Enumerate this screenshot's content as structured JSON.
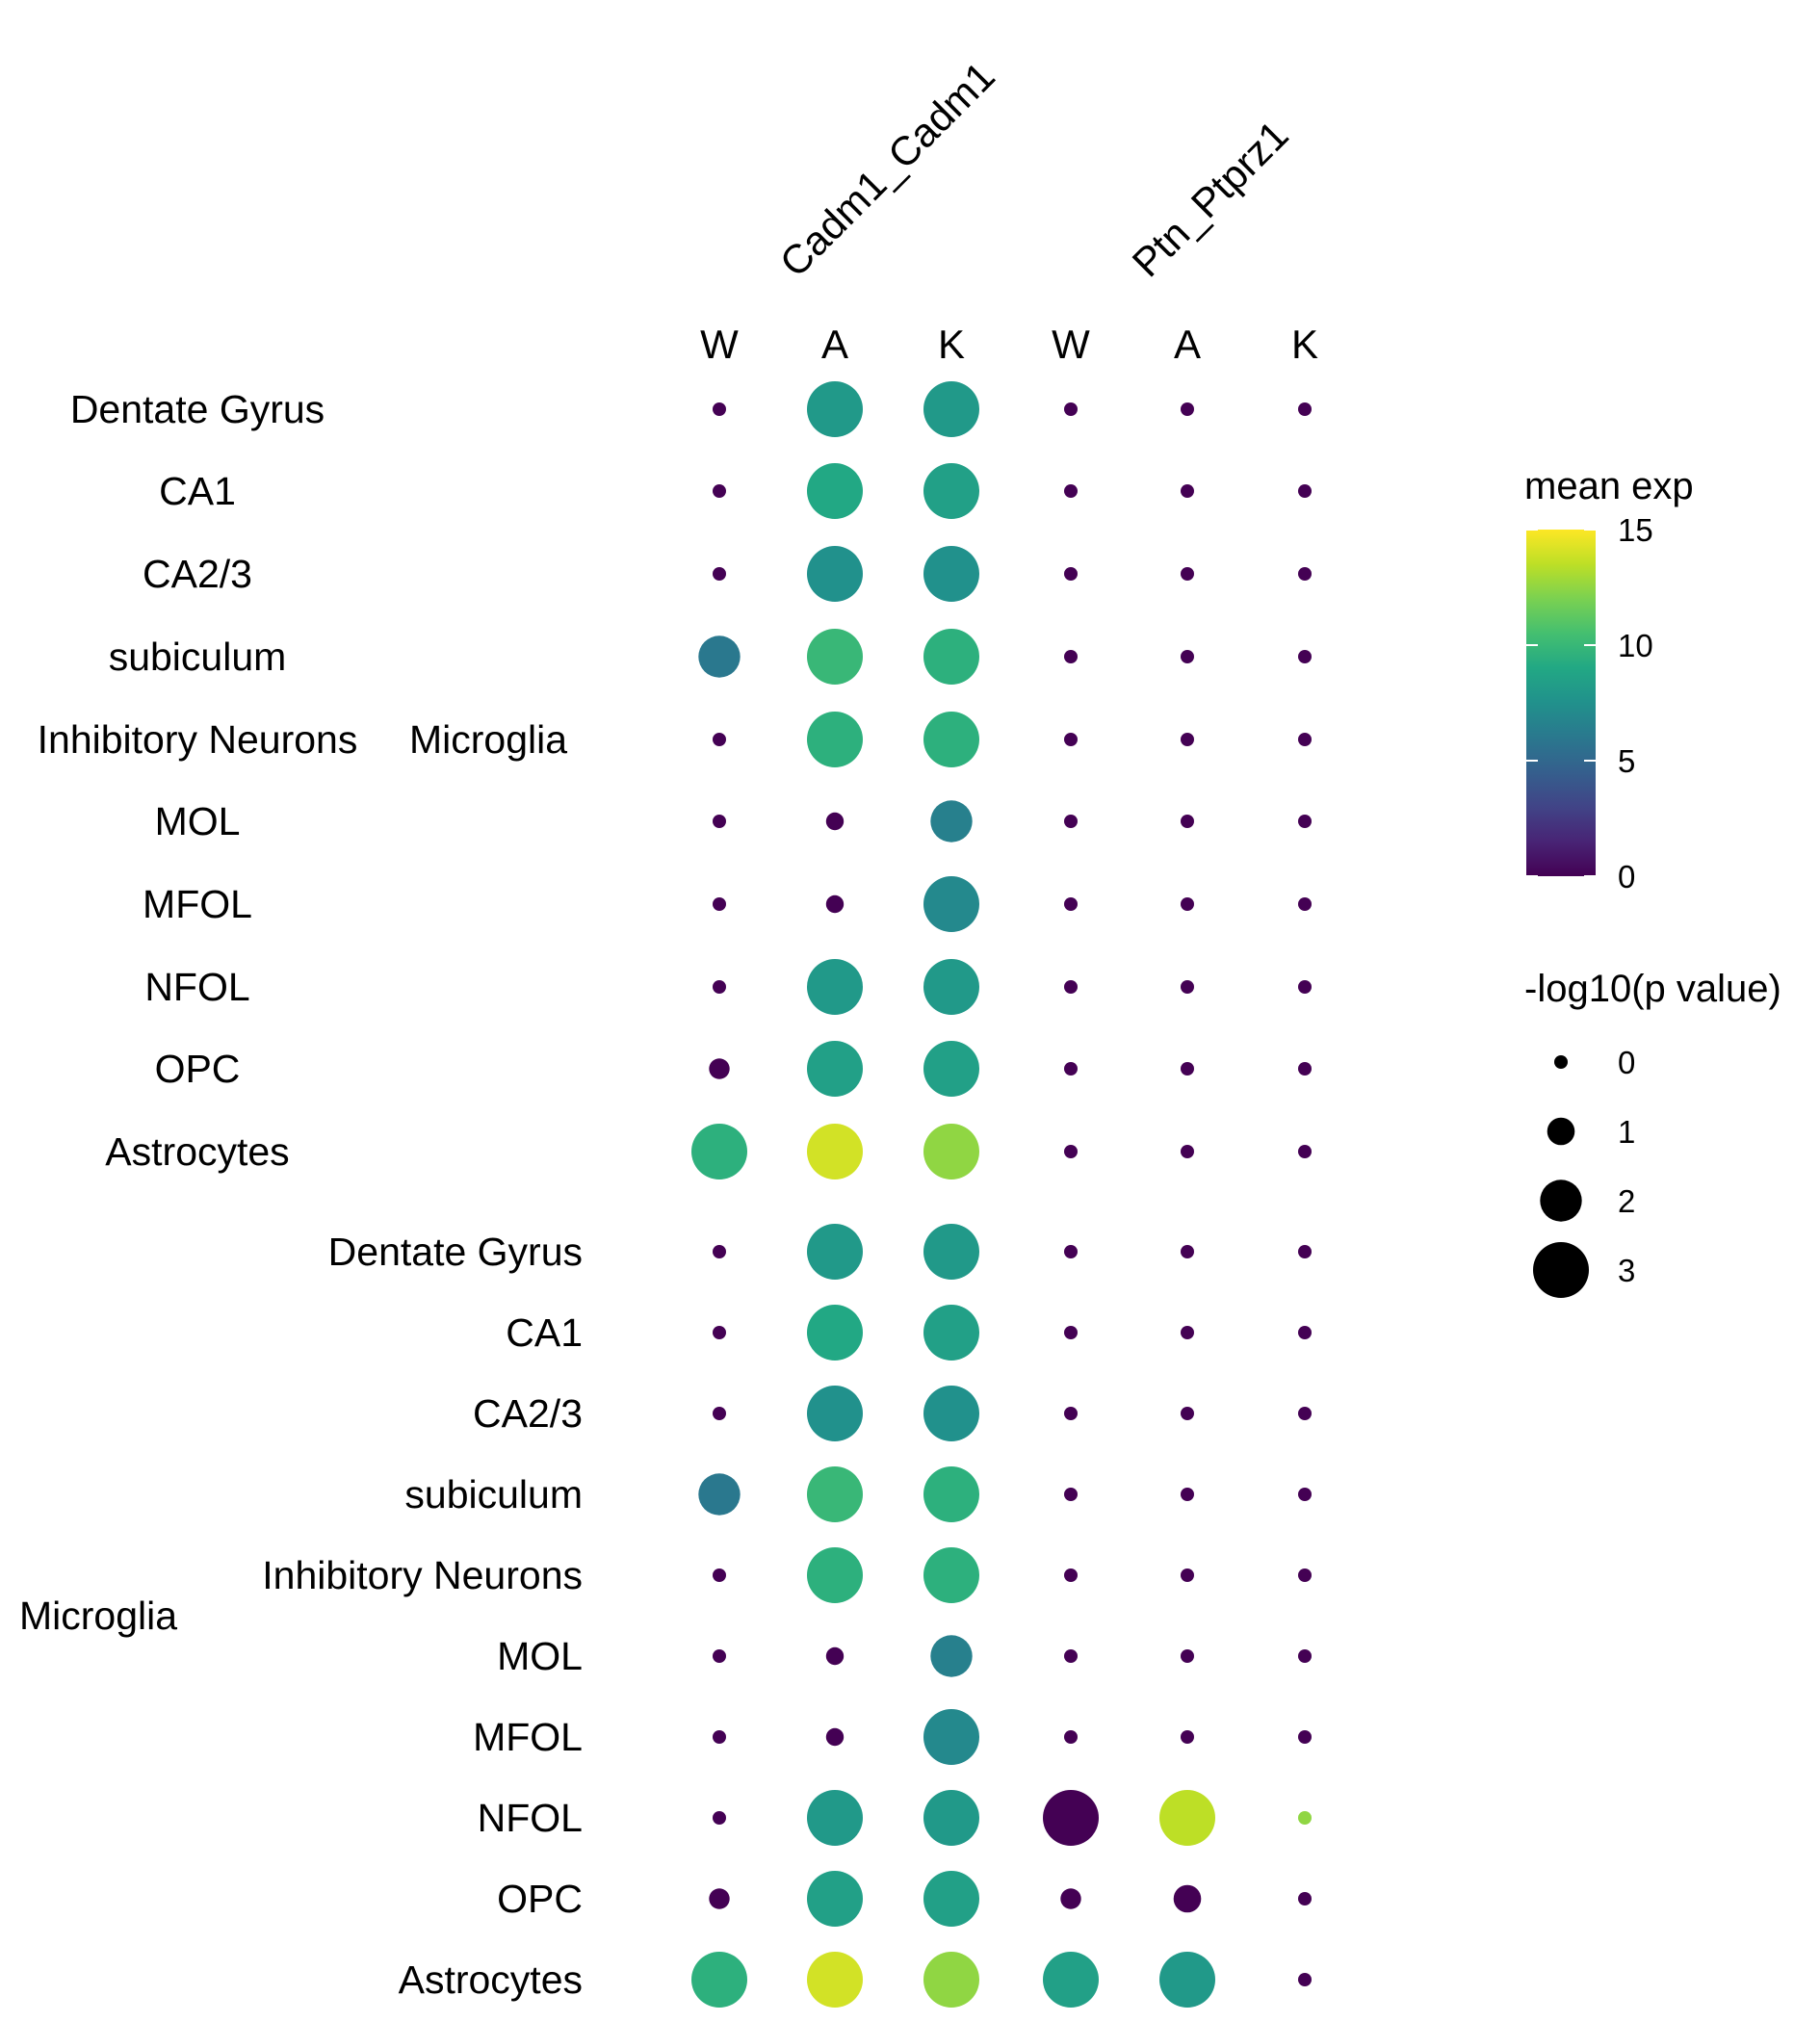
{
  "chart_data": {
    "type": "dotplot",
    "title": "",
    "xlabel": "",
    "ylabel": "",
    "pairs": [
      "Cadm1_Cadm1",
      "Ptn_Ptprz1"
    ],
    "columns": [
      {
        "pair": "Cadm1_Cadm1",
        "label": "W"
      },
      {
        "pair": "Cadm1_Cadm1",
        "label": "A"
      },
      {
        "pair": "Cadm1_Cadm1",
        "label": "K"
      },
      {
        "pair": "Ptn_Ptprz1",
        "label": "W"
      },
      {
        "pair": "Ptn_Ptprz1",
        "label": "A"
      },
      {
        "pair": "Ptn_Ptprz1",
        "label": "K"
      }
    ],
    "row_groups": [
      {
        "sender_label": "Microglia",
        "rows": [
          {
            "label": "Dentate Gyrus",
            "mean_exp": [
              0,
              8,
              8,
              0,
              0,
              0
            ],
            "neg_log10_p": [
              0,
              3,
              3,
              0,
              0,
              0
            ]
          },
          {
            "label": "CA1",
            "mean_exp": [
              0,
              9,
              8.5,
              0,
              0,
              0
            ],
            "neg_log10_p": [
              0,
              3,
              3,
              0,
              0,
              0
            ]
          },
          {
            "label": "CA2/3",
            "mean_exp": [
              0,
              7.5,
              7.5,
              0,
              0,
              0
            ],
            "neg_log10_p": [
              0,
              3,
              3,
              0,
              0,
              0
            ]
          },
          {
            "label": "subiculum",
            "mean_exp": [
              6,
              10,
              9.5,
              0,
              0,
              0
            ],
            "neg_log10_p": [
              2,
              3,
              3,
              0,
              0,
              0
            ]
          },
          {
            "label": "Inhibitory Neurons",
            "mean_exp": [
              0,
              9.5,
              9.5,
              0,
              0,
              0
            ],
            "neg_log10_p": [
              0,
              3,
              3,
              0,
              0,
              0
            ]
          },
          {
            "label": "MOL",
            "mean_exp": [
              0,
              0,
              6.5,
              0,
              0,
              0
            ],
            "neg_log10_p": [
              0,
              0.3,
              2,
              0,
              0,
              0
            ]
          },
          {
            "label": "MFOL",
            "mean_exp": [
              0,
              0,
              7,
              0,
              0,
              0
            ],
            "neg_log10_p": [
              0,
              0.3,
              3,
              0,
              0,
              0
            ]
          },
          {
            "label": "NFOL",
            "mean_exp": [
              0,
              8,
              8,
              0,
              0,
              0
            ],
            "neg_log10_p": [
              0,
              3,
              3,
              0,
              0,
              0
            ]
          },
          {
            "label": "OPC",
            "mean_exp": [
              0,
              8.5,
              8.5,
              0,
              0,
              0
            ],
            "neg_log10_p": [
              0.5,
              3,
              3,
              0,
              0,
              0
            ]
          },
          {
            "label": "Astrocytes",
            "mean_exp": [
              9.5,
              14,
              12.5,
              0,
              0,
              0
            ],
            "neg_log10_p": [
              3,
              3,
              3,
              0,
              0,
              0
            ]
          }
        ]
      },
      {
        "sender_label": "Microglia",
        "rows": [
          {
            "label": "Dentate Gyrus",
            "mean_exp": [
              0,
              8,
              8,
              0,
              0,
              0
            ],
            "neg_log10_p": [
              0,
              3,
              3,
              0,
              0,
              0
            ]
          },
          {
            "label": "CA1",
            "mean_exp": [
              0,
              9,
              8.5,
              0,
              0,
              0
            ],
            "neg_log10_p": [
              0,
              3,
              3,
              0,
              0,
              0
            ]
          },
          {
            "label": "CA2/3",
            "mean_exp": [
              0,
              7.5,
              7.5,
              0,
              0,
              0
            ],
            "neg_log10_p": [
              0,
              3,
              3,
              0,
              0,
              0
            ]
          },
          {
            "label": "subiculum",
            "mean_exp": [
              6,
              10,
              9.5,
              0,
              0,
              0
            ],
            "neg_log10_p": [
              2,
              3,
              3,
              0,
              0,
              0
            ]
          },
          {
            "label": "Inhibitory Neurons",
            "mean_exp": [
              0,
              9.5,
              9.5,
              0,
              0,
              0
            ],
            "neg_log10_p": [
              0,
              3,
              3,
              0,
              0,
              0
            ]
          },
          {
            "label": "MOL",
            "mean_exp": [
              0,
              0,
              6.5,
              0,
              0,
              0
            ],
            "neg_log10_p": [
              0,
              0.3,
              2,
              0,
              0,
              0
            ]
          },
          {
            "label": "MFOL",
            "mean_exp": [
              0,
              0,
              7,
              0,
              0,
              0
            ],
            "neg_log10_p": [
              0,
              0.3,
              3,
              0,
              0,
              0
            ]
          },
          {
            "label": "NFOL",
            "mean_exp": [
              0,
              8,
              8,
              0,
              13.5,
              12.5
            ],
            "neg_log10_p": [
              0,
              3,
              3,
              3,
              3,
              0
            ]
          },
          {
            "label": "OPC",
            "mean_exp": [
              0,
              8.5,
              8.5,
              0,
              0,
              0
            ],
            "neg_log10_p": [
              0.5,
              3,
              3,
              0.5,
              1,
              0
            ]
          },
          {
            "label": "Astrocytes",
            "mean_exp": [
              9.5,
              14,
              12.5,
              8.5,
              8,
              0
            ],
            "neg_log10_p": [
              3,
              3,
              3,
              3,
              3,
              0
            ]
          }
        ]
      }
    ],
    "color_legend": {
      "title": "mean exp",
      "ticks": [
        0,
        5,
        10,
        15
      ],
      "min": 0,
      "max": 15
    },
    "size_legend": {
      "title": "-log10(p value)",
      "ticks": [
        0,
        1,
        2,
        3
      ]
    }
  }
}
